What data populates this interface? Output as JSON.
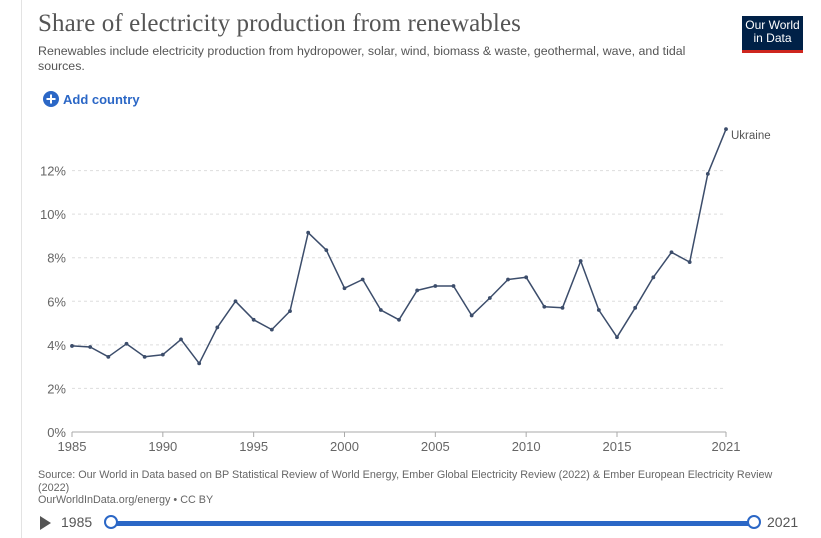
{
  "header": {
    "title": "Share of electricity production from renewables",
    "subtitle": "Renewables include electricity production from hydropower, solar, wind, biomass & waste, geothermal, wave, and tidal sources.",
    "logo_line1": "Our World",
    "logo_line2": "in Data",
    "add_country_label": "Add country"
  },
  "colors": {
    "line": "#3c4d6b",
    "accent": "#2b67c6",
    "logo_bg": "#002147",
    "logo_stripe": "#ce261e"
  },
  "chart_data": {
    "type": "line",
    "title": "Share of electricity production from renewables",
    "xlabel": "",
    "ylabel": "",
    "xlim": [
      1985,
      2021
    ],
    "ylim": [
      0,
      14
    ],
    "y_ticks": [
      "0%",
      "2%",
      "4%",
      "6%",
      "8%",
      "10%",
      "12%"
    ],
    "y_tick_values": [
      0,
      2,
      4,
      6,
      8,
      10,
      12
    ],
    "x_ticks": [
      "1985",
      "1990",
      "1995",
      "2000",
      "2005",
      "2010",
      "2015",
      "2021"
    ],
    "x_tick_values": [
      1985,
      1990,
      1995,
      2000,
      2005,
      2010,
      2015,
      2021
    ],
    "grid": true,
    "series": [
      {
        "name": "Ukraine",
        "x": [
          1985,
          1986,
          1987,
          1988,
          1989,
          1990,
          1991,
          1992,
          1993,
          1994,
          1995,
          1996,
          1997,
          1998,
          1999,
          2000,
          2001,
          2002,
          2003,
          2004,
          2005,
          2006,
          2007,
          2008,
          2009,
          2010,
          2011,
          2012,
          2013,
          2014,
          2015,
          2016,
          2017,
          2018,
          2019,
          2020,
          2021
        ],
        "values": [
          3.95,
          3.9,
          3.45,
          4.05,
          3.45,
          3.55,
          4.25,
          3.15,
          4.8,
          6.0,
          5.15,
          4.7,
          5.55,
          9.15,
          8.35,
          6.6,
          7.0,
          5.6,
          5.15,
          6.5,
          6.7,
          6.7,
          5.35,
          6.15,
          7.0,
          7.1,
          5.75,
          5.7,
          7.85,
          5.6,
          4.35,
          5.7,
          7.1,
          8.25,
          7.8,
          11.85,
          13.9
        ]
      }
    ]
  },
  "source": {
    "line1": "Source: Our World in Data based on BP Statistical Review of World Energy, Ember Global Electricity Review (2022) & Ember European Electricity Review (2022)",
    "line2": "OurWorldInData.org/energy • CC BY"
  },
  "timeline": {
    "start_label": "1985",
    "end_label": "2021"
  }
}
